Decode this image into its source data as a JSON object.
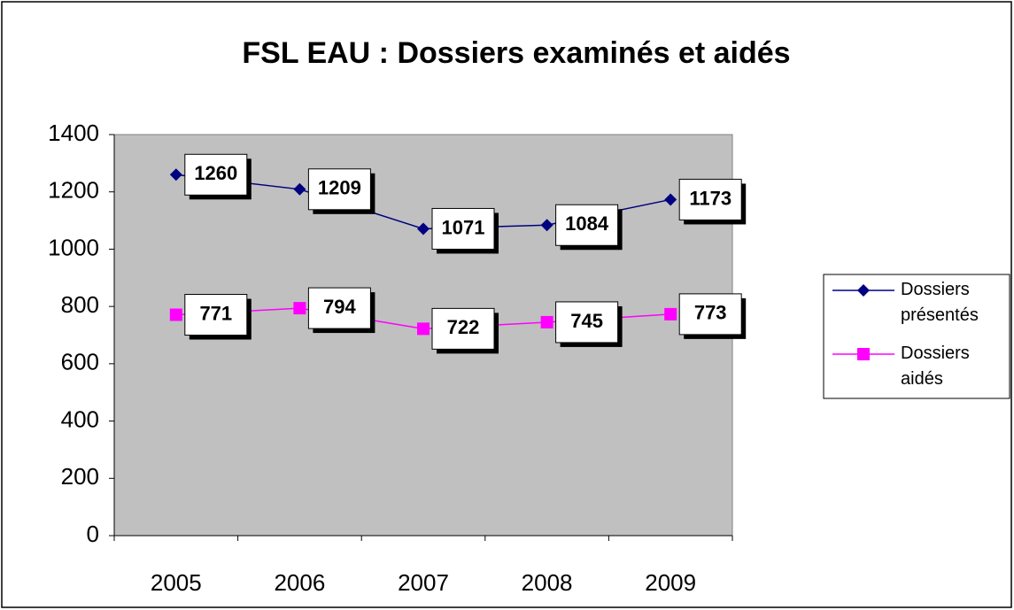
{
  "chart_data": {
    "type": "line",
    "title": "FSL EAU : Dossiers examinés et aidés",
    "categories": [
      "2005",
      "2006",
      "2007",
      "2008",
      "2009"
    ],
    "series": [
      {
        "name": "Dossiers présentés",
        "color": "#000080",
        "marker": "diamond",
        "values": [
          1260,
          1209,
          1071,
          1084,
          1173
        ]
      },
      {
        "name": "Dossiers aidés",
        "color": "#ff00ff",
        "marker": "square",
        "values": [
          771,
          794,
          722,
          745,
          773
        ]
      }
    ],
    "ylim": [
      0,
      1400
    ],
    "yticks": [
      0,
      200,
      400,
      600,
      800,
      1000,
      1200,
      1400
    ],
    "grid": false,
    "legend": "right"
  }
}
